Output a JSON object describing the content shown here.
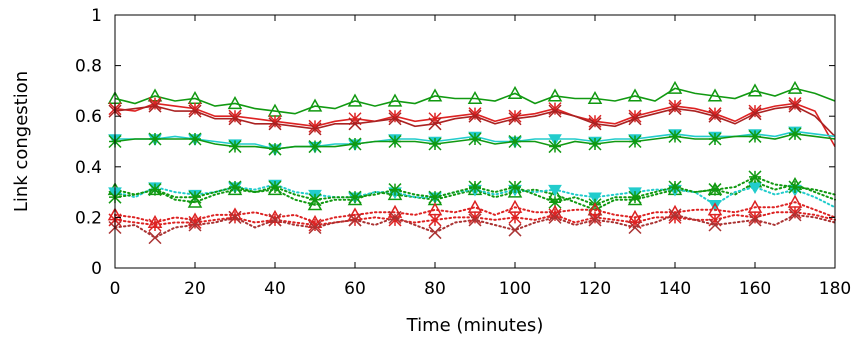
{
  "chart_data": {
    "type": "line",
    "title": "",
    "xlabel": "Time (minutes)",
    "ylabel": "Link congestion",
    "xlim": [
      0,
      180
    ],
    "ylim": [
      0,
      1
    ],
    "xticks": [
      "0",
      "20",
      "40",
      "60",
      "80",
      "100",
      "120",
      "140",
      "160",
      "180"
    ],
    "yticks": [
      "0",
      "0.2",
      "0.4",
      "0.6",
      "0.8",
      "1"
    ],
    "grid": false,
    "legend": "none",
    "marker_every": 10,
    "series": [
      {
        "color": "#119911",
        "style": "solid",
        "marker": "triangle",
        "x": [
          0,
          5,
          10,
          15,
          20,
          25,
          30,
          35,
          40,
          45,
          50,
          55,
          60,
          65,
          70,
          75,
          80,
          85,
          90,
          95,
          100,
          105,
          110,
          115,
          120,
          125,
          130,
          135,
          140,
          145,
          150,
          155,
          160,
          165,
          170,
          175,
          180
        ],
        "y": [
          0.67,
          0.65,
          0.68,
          0.66,
          0.67,
          0.64,
          0.65,
          0.63,
          0.62,
          0.61,
          0.64,
          0.63,
          0.66,
          0.64,
          0.66,
          0.65,
          0.68,
          0.67,
          0.67,
          0.66,
          0.69,
          0.65,
          0.68,
          0.67,
          0.67,
          0.66,
          0.68,
          0.66,
          0.71,
          0.69,
          0.68,
          0.67,
          0.7,
          0.68,
          0.71,
          0.69,
          0.66
        ]
      },
      {
        "color": "#dd2222",
        "style": "solid",
        "marker": "star",
        "x": [
          0,
          5,
          10,
          15,
          20,
          25,
          30,
          35,
          40,
          45,
          50,
          55,
          60,
          65,
          70,
          75,
          80,
          85,
          90,
          95,
          100,
          105,
          110,
          115,
          120,
          125,
          130,
          135,
          140,
          145,
          150,
          155,
          160,
          165,
          170,
          175,
          180
        ],
        "y": [
          0.63,
          0.62,
          0.65,
          0.64,
          0.63,
          0.6,
          0.6,
          0.59,
          0.58,
          0.57,
          0.56,
          0.58,
          0.59,
          0.58,
          0.6,
          0.58,
          0.59,
          0.6,
          0.61,
          0.58,
          0.6,
          0.61,
          0.63,
          0.6,
          0.58,
          0.57,
          0.6,
          0.62,
          0.64,
          0.63,
          0.61,
          0.58,
          0.62,
          0.64,
          0.65,
          0.62,
          0.48
        ]
      },
      {
        "color": "#aa2222",
        "style": "solid",
        "marker": "x",
        "x": [
          0,
          5,
          10,
          15,
          20,
          25,
          30,
          35,
          40,
          45,
          50,
          55,
          60,
          65,
          70,
          75,
          80,
          85,
          90,
          95,
          100,
          105,
          110,
          115,
          120,
          125,
          130,
          135,
          140,
          145,
          150,
          155,
          160,
          165,
          170,
          175,
          180
        ],
        "y": [
          0.62,
          0.63,
          0.64,
          0.62,
          0.62,
          0.59,
          0.59,
          0.57,
          0.57,
          0.56,
          0.55,
          0.57,
          0.57,
          0.58,
          0.59,
          0.56,
          0.57,
          0.59,
          0.6,
          0.57,
          0.59,
          0.6,
          0.62,
          0.6,
          0.57,
          0.56,
          0.59,
          0.61,
          0.63,
          0.62,
          0.6,
          0.57,
          0.61,
          0.63,
          0.64,
          0.6,
          0.52
        ]
      },
      {
        "color": "#22cccc",
        "style": "solid",
        "marker": "diamond",
        "x": [
          0,
          5,
          10,
          15,
          20,
          25,
          30,
          35,
          40,
          45,
          50,
          55,
          60,
          65,
          70,
          75,
          80,
          85,
          90,
          95,
          100,
          105,
          110,
          115,
          120,
          125,
          130,
          135,
          140,
          145,
          150,
          155,
          160,
          165,
          170,
          175,
          180
        ],
        "y": [
          0.51,
          0.51,
          0.51,
          0.52,
          0.51,
          0.5,
          0.49,
          0.49,
          0.47,
          0.48,
          0.48,
          0.49,
          0.49,
          0.5,
          0.51,
          0.51,
          0.5,
          0.51,
          0.52,
          0.5,
          0.5,
          0.51,
          0.51,
          0.51,
          0.5,
          0.51,
          0.51,
          0.52,
          0.53,
          0.52,
          0.52,
          0.52,
          0.53,
          0.52,
          0.54,
          0.53,
          0.52
        ]
      },
      {
        "color": "#119911",
        "style": "solid",
        "marker": "asterisk",
        "x": [
          0,
          5,
          10,
          15,
          20,
          25,
          30,
          35,
          40,
          45,
          50,
          55,
          60,
          65,
          70,
          75,
          80,
          85,
          90,
          95,
          100,
          105,
          110,
          115,
          120,
          125,
          130,
          135,
          140,
          145,
          150,
          155,
          160,
          165,
          170,
          175,
          180
        ],
        "y": [
          0.5,
          0.51,
          0.51,
          0.51,
          0.51,
          0.49,
          0.48,
          0.48,
          0.47,
          0.48,
          0.48,
          0.48,
          0.49,
          0.5,
          0.5,
          0.5,
          0.49,
          0.5,
          0.51,
          0.49,
          0.5,
          0.5,
          0.48,
          0.5,
          0.49,
          0.5,
          0.5,
          0.51,
          0.52,
          0.51,
          0.51,
          0.52,
          0.52,
          0.51,
          0.53,
          0.52,
          0.51
        ]
      },
      {
        "color": "#119911",
        "style": "dotted",
        "marker": "triangle",
        "x": [
          0,
          5,
          10,
          15,
          20,
          25,
          30,
          35,
          40,
          45,
          50,
          55,
          60,
          65,
          70,
          75,
          80,
          85,
          90,
          95,
          100,
          105,
          110,
          115,
          120,
          125,
          130,
          135,
          140,
          145,
          150,
          155,
          160,
          165,
          170,
          175,
          180
        ],
        "y": [
          0.31,
          0.29,
          0.31,
          0.27,
          0.26,
          0.29,
          0.31,
          0.3,
          0.31,
          0.27,
          0.25,
          0.27,
          0.27,
          0.3,
          0.29,
          0.28,
          0.27,
          0.29,
          0.31,
          0.28,
          0.3,
          0.31,
          0.29,
          0.26,
          0.23,
          0.27,
          0.27,
          0.29,
          0.31,
          0.3,
          0.31,
          0.29,
          0.34,
          0.31,
          0.33,
          0.3,
          0.27
        ]
      },
      {
        "color": "#22cccc",
        "style": "dotted",
        "marker": "diamond",
        "x": [
          0,
          5,
          10,
          15,
          20,
          25,
          30,
          35,
          40,
          45,
          50,
          55,
          60,
          65,
          70,
          75,
          80,
          85,
          90,
          95,
          100,
          105,
          110,
          115,
          120,
          125,
          130,
          135,
          140,
          145,
          150,
          155,
          160,
          165,
          170,
          175,
          180
        ],
        "y": [
          0.3,
          0.28,
          0.32,
          0.3,
          0.29,
          0.3,
          0.32,
          0.31,
          0.33,
          0.3,
          0.29,
          0.28,
          0.28,
          0.3,
          0.3,
          0.28,
          0.28,
          0.3,
          0.31,
          0.29,
          0.31,
          0.3,
          0.31,
          0.29,
          0.28,
          0.29,
          0.3,
          0.31,
          0.31,
          0.3,
          0.25,
          0.3,
          0.32,
          0.29,
          0.31,
          0.28,
          0.24
        ]
      },
      {
        "color": "#119911",
        "style": "dotted",
        "marker": "asterisk",
        "x": [
          0,
          5,
          10,
          15,
          20,
          25,
          30,
          35,
          40,
          45,
          50,
          55,
          60,
          65,
          70,
          75,
          80,
          85,
          90,
          95,
          100,
          105,
          110,
          115,
          120,
          125,
          130,
          135,
          140,
          145,
          150,
          155,
          160,
          165,
          170,
          175,
          180
        ],
        "y": [
          0.28,
          0.29,
          0.31,
          0.28,
          0.28,
          0.3,
          0.32,
          0.3,
          0.32,
          0.29,
          0.27,
          0.28,
          0.28,
          0.29,
          0.31,
          0.29,
          0.28,
          0.3,
          0.32,
          0.3,
          0.32,
          0.29,
          0.26,
          0.28,
          0.25,
          0.28,
          0.28,
          0.3,
          0.32,
          0.3,
          0.31,
          0.32,
          0.36,
          0.33,
          0.32,
          0.31,
          0.29
        ]
      },
      {
        "color": "#dd2222",
        "style": "dotted",
        "marker": "triangle",
        "x": [
          0,
          5,
          10,
          15,
          20,
          25,
          30,
          35,
          40,
          45,
          50,
          55,
          60,
          65,
          70,
          75,
          80,
          85,
          90,
          95,
          100,
          105,
          110,
          115,
          120,
          125,
          130,
          135,
          140,
          145,
          150,
          155,
          160,
          165,
          170,
          175,
          180
        ],
        "y": [
          0.21,
          0.2,
          0.18,
          0.2,
          0.19,
          0.21,
          0.21,
          0.22,
          0.2,
          0.21,
          0.18,
          0.2,
          0.21,
          0.22,
          0.22,
          0.21,
          0.23,
          0.22,
          0.24,
          0.21,
          0.24,
          0.22,
          0.22,
          0.23,
          0.23,
          0.21,
          0.2,
          0.22,
          0.22,
          0.23,
          0.23,
          0.22,
          0.24,
          0.24,
          0.26,
          0.23,
          0.2
        ]
      },
      {
        "color": "#dd2222",
        "style": "dotted",
        "marker": "star",
        "x": [
          0,
          5,
          10,
          15,
          20,
          25,
          30,
          35,
          40,
          45,
          50,
          55,
          60,
          65,
          70,
          75,
          80,
          85,
          90,
          95,
          100,
          105,
          110,
          115,
          120,
          125,
          130,
          135,
          140,
          145,
          150,
          155,
          160,
          165,
          170,
          175,
          180
        ],
        "y": [
          0.19,
          0.18,
          0.17,
          0.18,
          0.18,
          0.19,
          0.2,
          0.18,
          0.19,
          0.18,
          0.17,
          0.18,
          0.19,
          0.2,
          0.19,
          0.18,
          0.19,
          0.2,
          0.2,
          0.19,
          0.2,
          0.19,
          0.21,
          0.18,
          0.2,
          0.19,
          0.18,
          0.2,
          0.2,
          0.19,
          0.19,
          0.21,
          0.2,
          0.22,
          0.22,
          0.21,
          0.19
        ]
      },
      {
        "color": "#aa3333",
        "style": "dotted",
        "marker": "x",
        "x": [
          0,
          5,
          10,
          15,
          20,
          25,
          30,
          35,
          40,
          45,
          50,
          55,
          60,
          65,
          70,
          75,
          80,
          85,
          90,
          95,
          100,
          105,
          110,
          115,
          120,
          125,
          130,
          135,
          140,
          145,
          150,
          155,
          160,
          165,
          170,
          175,
          180
        ],
        "y": [
          0.16,
          0.17,
          0.12,
          0.16,
          0.17,
          0.18,
          0.2,
          0.16,
          0.19,
          0.17,
          0.16,
          0.18,
          0.19,
          0.17,
          0.2,
          0.17,
          0.14,
          0.18,
          0.19,
          0.17,
          0.15,
          0.18,
          0.2,
          0.17,
          0.19,
          0.18,
          0.16,
          0.18,
          0.21,
          0.19,
          0.17,
          0.18,
          0.19,
          0.17,
          0.21,
          0.2,
          0.18
        ]
      }
    ]
  }
}
